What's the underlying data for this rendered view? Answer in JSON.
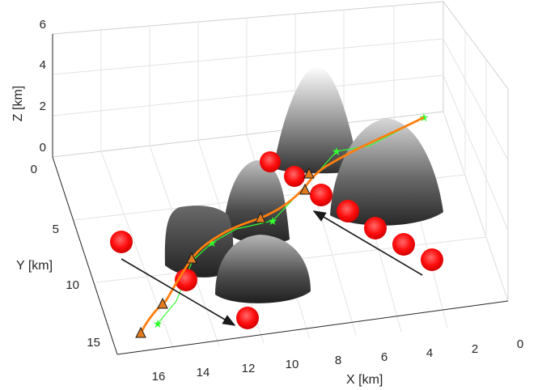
{
  "chart_data": {
    "type": "3d-surface-trajectory",
    "axes": {
      "x": {
        "label": "X [km]",
        "ticks": [
          "0",
          "2",
          "4",
          "6",
          "8",
          "10",
          "12",
          "14",
          "16"
        ]
      },
      "y": {
        "label": "Y [km]",
        "ticks": [
          "0",
          "5",
          "10",
          "15"
        ]
      },
      "z": {
        "label": "Z [km]",
        "ticks": [
          "0",
          "2",
          "4",
          "6"
        ]
      }
    },
    "grid": true,
    "colors": {
      "planned_path": "#ff7f0e",
      "reference_path": "#32ff32",
      "waypoint_marker": "#e07b20",
      "obstacle_sphere": "#ff1010",
      "motion_arrow": "#1a1a1a",
      "terrain_light": "#ffffff",
      "terrain_dark": "#2a2a2a"
    },
    "markers": {
      "waypoints": "triangle",
      "reference_points": "star",
      "obstacles": "sphere"
    },
    "terrain_peaks": 5,
    "moving_obstacle_groups": 2
  }
}
